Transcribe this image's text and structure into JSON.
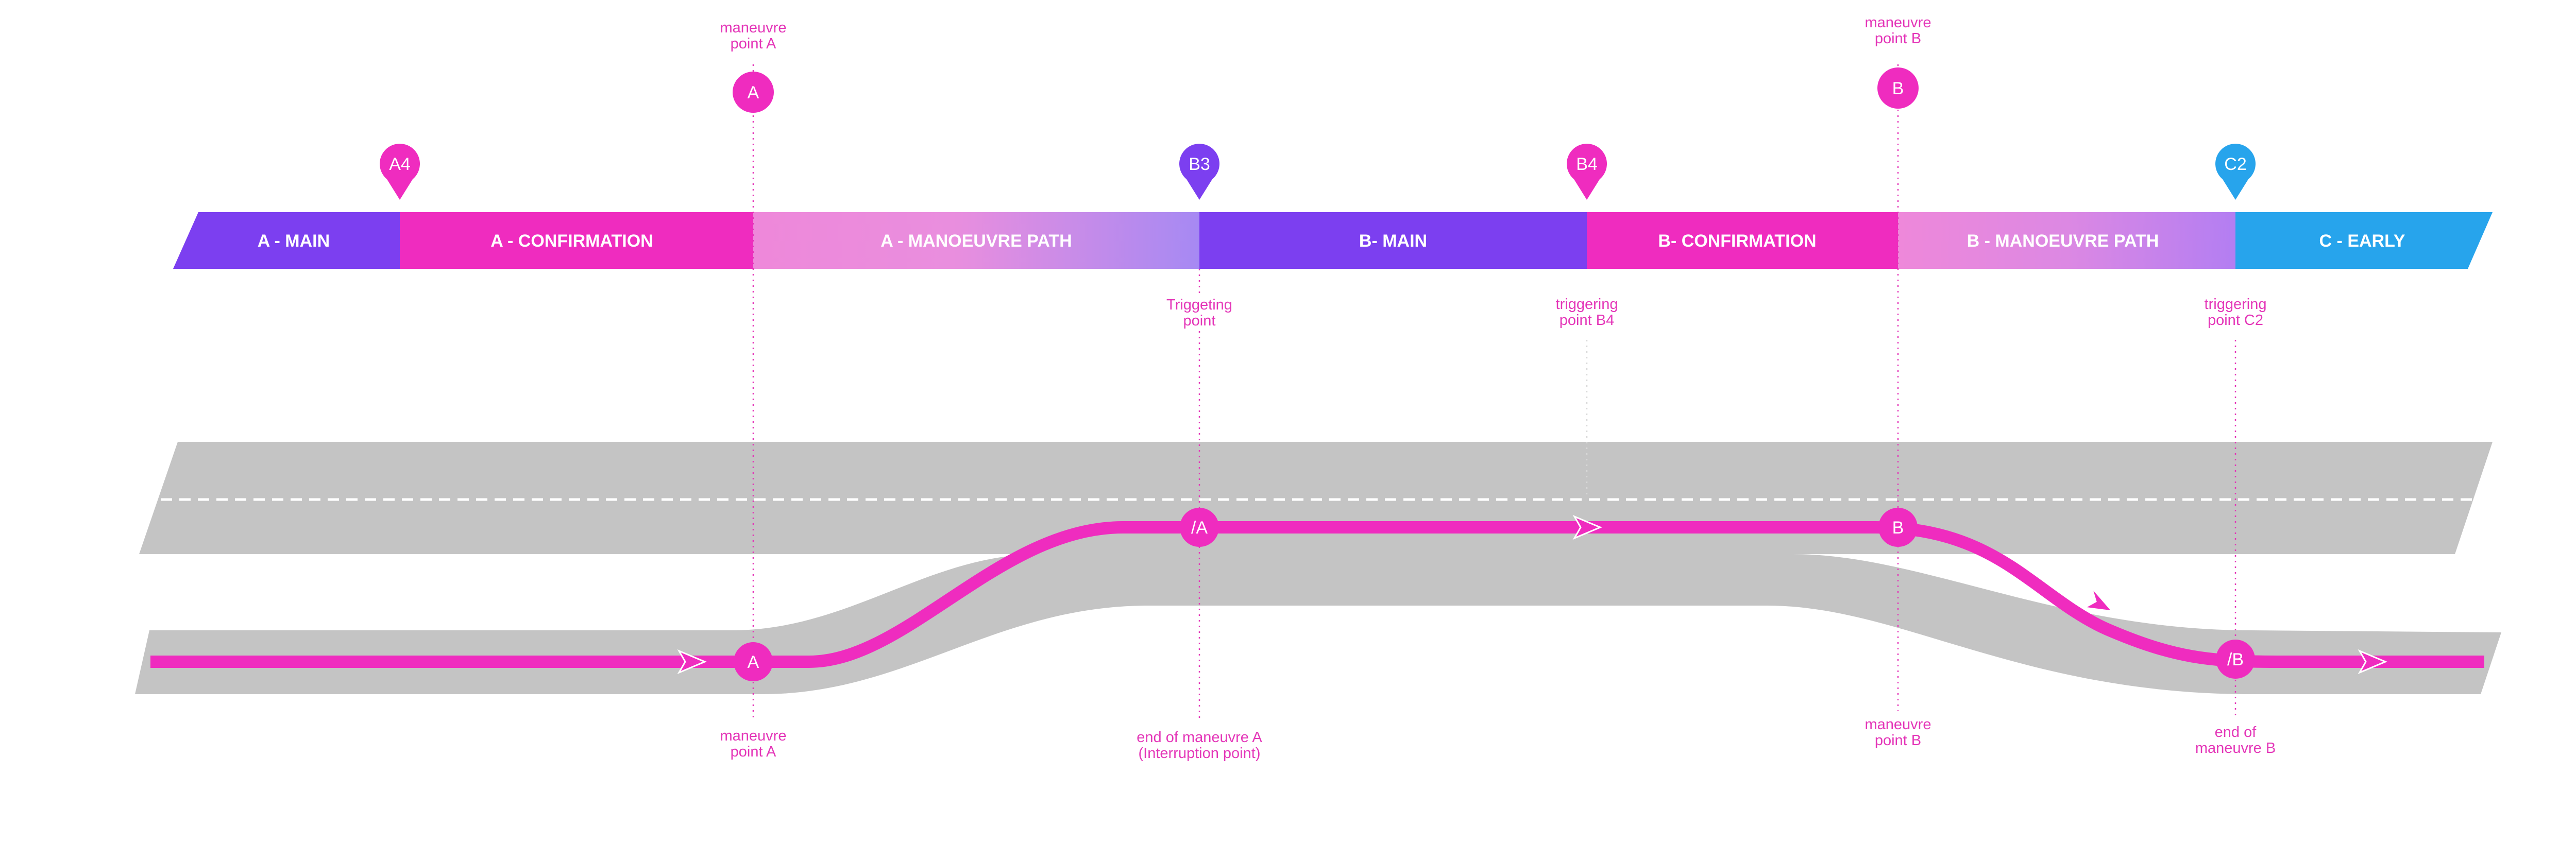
{
  "colors": {
    "purple": "#7c3ff0",
    "magenta": "#ef2cbf",
    "pink_light": "#ee88da",
    "lavender": "#b48cf4",
    "blue": "#27a4ec",
    "road": "#c4c4c4",
    "annotation": "#e436b8"
  },
  "segments": [
    {
      "label": "A - MAIN"
    },
    {
      "label": "A - CONFIRMATION"
    },
    {
      "label": "A - MANOEUVRE PATH"
    },
    {
      "label": "B- MAIN"
    },
    {
      "label": "B- CONFIRMATION"
    },
    {
      "label": "B - MANOEUVRE PATH"
    },
    {
      "label": "C - EARLY"
    }
  ],
  "pins": [
    {
      "label": "A4"
    },
    {
      "label": "B3"
    },
    {
      "label": "B4"
    },
    {
      "label": "C2"
    }
  ],
  "top_markers": [
    {
      "label": "A",
      "caption": [
        "maneuvre",
        "point A"
      ]
    },
    {
      "label": "B",
      "caption": [
        "maneuvre",
        "point B"
      ]
    }
  ],
  "trigger_captions": [
    {
      "lines": [
        "Triggeting",
        "point"
      ]
    },
    {
      "lines": [
        "triggering",
        "point B4"
      ]
    },
    {
      "lines": [
        "triggering",
        "point C2"
      ]
    }
  ],
  "route_markers": [
    {
      "label": "A"
    },
    {
      "label": "/A"
    },
    {
      "label": "B"
    },
    {
      "label": "/B"
    }
  ],
  "bottom_captions": [
    {
      "lines": [
        "maneuvre",
        "point A"
      ]
    },
    {
      "lines": [
        "end of maneuvre A",
        "(Interruption point)"
      ]
    },
    {
      "lines": [
        "maneuvre",
        "point B"
      ]
    },
    {
      "lines": [
        "end of",
        "maneuvre B"
      ]
    }
  ]
}
